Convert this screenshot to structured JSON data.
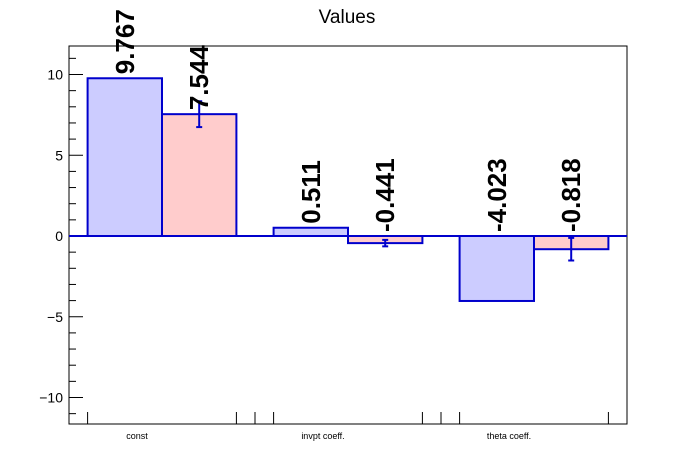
{
  "chart_data": {
    "type": "bar",
    "title": "Values",
    "xlabel": "",
    "ylabel": "",
    "categories": [
      "const",
      "invpt coeff.",
      "theta coeff."
    ],
    "ylim": [
      -11.6,
      11.6
    ],
    "yticks": [
      -10,
      -5,
      0,
      5,
      10
    ],
    "ytick_labels": [
      "−10",
      "−5",
      "0",
      "5",
      "10"
    ],
    "series": [
      {
        "values": [
          9.767,
          0.511,
          -4.023
        ],
        "labels": [
          "9.767",
          "0.511",
          "-4.023"
        ],
        "errors": [
          null,
          null,
          null
        ],
        "fill": "#ccccff",
        "stroke": "#0000cc"
      },
      {
        "values": [
          7.544,
          -0.441,
          -0.818
        ],
        "labels": [
          "7.544",
          "-0.441",
          "-0.818"
        ],
        "errors": [
          0.8,
          0.2,
          0.7
        ],
        "fill": "#ffcccc",
        "stroke": "#0000cc"
      }
    ],
    "grid": false,
    "legend": "none"
  }
}
